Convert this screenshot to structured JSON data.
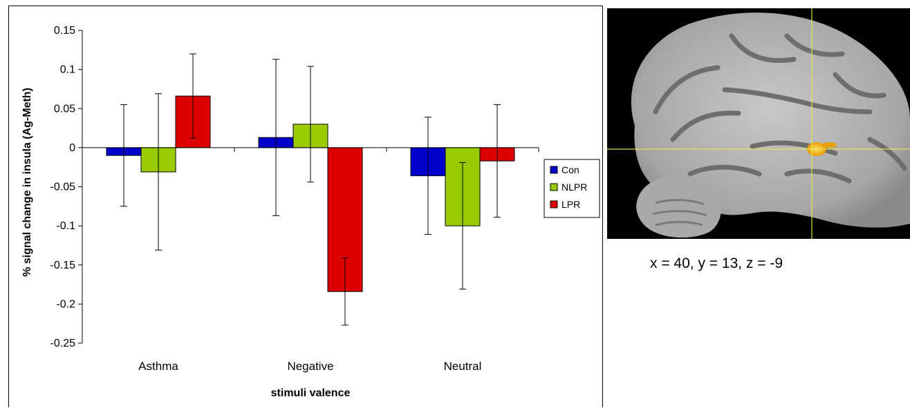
{
  "chart_data": {
    "type": "bar",
    "categories": [
      "Asthma",
      "Negative",
      "Neutral"
    ],
    "series": [
      {
        "name": "Con",
        "color": "#0000cc",
        "values": [
          -0.01,
          0.013,
          -0.036
        ],
        "error": [
          0.065,
          0.1,
          0.075
        ]
      },
      {
        "name": "NLPR",
        "color": "#99cc00",
        "values": [
          -0.031,
          0.03,
          -0.1
        ],
        "error": [
          0.1,
          0.074,
          0.081
        ]
      },
      {
        "name": "LPR",
        "color": "#dd0000",
        "values": [
          0.066,
          -0.184,
          -0.017
        ],
        "error": [
          0.054,
          0.043,
          0.072
        ]
      }
    ],
    "ylabel": "% signal change in insula (Ag-Meth)",
    "xlabel": "stimuli valence",
    "ylim": [
      -0.25,
      0.15
    ],
    "yticks": [
      0.15,
      0.1,
      0.05,
      0,
      -0.05,
      -0.1,
      -0.15,
      -0.2,
      -0.25
    ],
    "ytick_labels": [
      "0.15",
      "0.1",
      "0.05",
      "0",
      "-0.05",
      "-0.1",
      "-0.15",
      "-0.2",
      "-0.25"
    ],
    "grid": false,
    "legend": "right"
  },
  "brain": {
    "coords": "x = 40, y = 13, z = -9"
  }
}
